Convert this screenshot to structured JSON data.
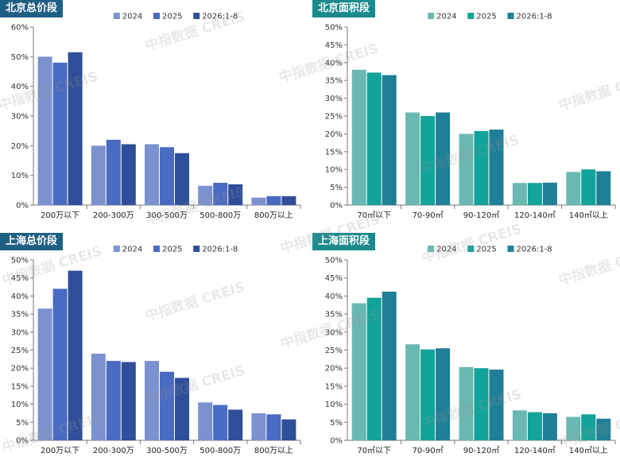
{
  "watermark": "中指数据 CREIS",
  "chart_data": [
    {
      "type": "bar",
      "title": "北京总价段",
      "categories": [
        "200万以下",
        "200-300万",
        "300-500万",
        "500-800万",
        "800万以上"
      ],
      "y_ticks": [
        "0%",
        "10%",
        "20%",
        "30%",
        "40%",
        "50%",
        "60%"
      ],
      "ylim": [
        0,
        60
      ],
      "grid": false,
      "legend_position": "top",
      "series": [
        {
          "name": "2024",
          "color": "#7b92cf",
          "values": [
            50,
            20,
            20.5,
            6.5,
            2.5
          ]
        },
        {
          "name": "2025",
          "color": "#4a6bc2",
          "values": [
            48,
            22,
            19.5,
            7.5,
            3
          ]
        },
        {
          "name": "2026:1-8",
          "color": "#2f4f9a",
          "values": [
            51.5,
            20.5,
            17.5,
            7,
            3
          ]
        }
      ]
    },
    {
      "type": "bar",
      "title": "北京面积段",
      "categories": [
        "70㎡以下",
        "70-90㎡",
        "90-120㎡",
        "120-140㎡",
        "140㎡以上"
      ],
      "y_ticks": [
        "0%",
        "5%",
        "10%",
        "15%",
        "20%",
        "25%",
        "30%",
        "35%",
        "40%",
        "45%",
        "50%"
      ],
      "ylim": [
        0,
        50
      ],
      "grid": false,
      "legend_position": "top",
      "series": [
        {
          "name": "2024",
          "color": "#6ab8b2",
          "values": [
            38,
            26,
            20,
            6.2,
            9.3
          ]
        },
        {
          "name": "2025",
          "color": "#12a39a",
          "values": [
            37.2,
            25,
            20.8,
            6.2,
            10
          ]
        },
        {
          "name": "2026:1-8",
          "color": "#1f7f97",
          "values": [
            36.5,
            26,
            21.2,
            6.3,
            9.5
          ]
        }
      ]
    },
    {
      "type": "bar",
      "title": "上海总价段",
      "categories": [
        "200万以下",
        "200-300万",
        "300-500万",
        "500-800万",
        "800万以上"
      ],
      "y_ticks": [
        "0%",
        "5%",
        "10%",
        "15%",
        "20%",
        "25%",
        "30%",
        "35%",
        "40%",
        "45%",
        "50%"
      ],
      "ylim": [
        0,
        50
      ],
      "grid": false,
      "legend_position": "top",
      "series": [
        {
          "name": "2024",
          "color": "#7b92cf",
          "values": [
            36.5,
            24,
            22,
            10.5,
            7.5
          ]
        },
        {
          "name": "2025",
          "color": "#4a6bc2",
          "values": [
            42,
            22,
            19,
            9.8,
            7.2
          ]
        },
        {
          "name": "2026:1-8",
          "color": "#2f4f9a",
          "values": [
            47,
            21.7,
            17.3,
            8.5,
            5.8
          ]
        }
      ]
    },
    {
      "type": "bar",
      "title": "上海面积段",
      "categories": [
        "70㎡以下",
        "70-90㎡",
        "90-120㎡",
        "120-140㎡",
        "140㎡以上"
      ],
      "y_ticks": [
        "0%",
        "5%",
        "10%",
        "15%",
        "20%",
        "25%",
        "30%",
        "35%",
        "40%",
        "45%",
        "50%"
      ],
      "ylim": [
        0,
        50
      ],
      "grid": false,
      "legend_position": "top",
      "series": [
        {
          "name": "2024",
          "color": "#6ab8b2",
          "values": [
            38,
            26.6,
            20.3,
            8.3,
            6.5
          ]
        },
        {
          "name": "2025",
          "color": "#12a39a",
          "values": [
            39.5,
            25.2,
            20,
            7.8,
            7.2
          ]
        },
        {
          "name": "2026:1-8",
          "color": "#1f7f97",
          "values": [
            41.2,
            25.5,
            19.6,
            7.5,
            6
          ]
        }
      ]
    }
  ]
}
